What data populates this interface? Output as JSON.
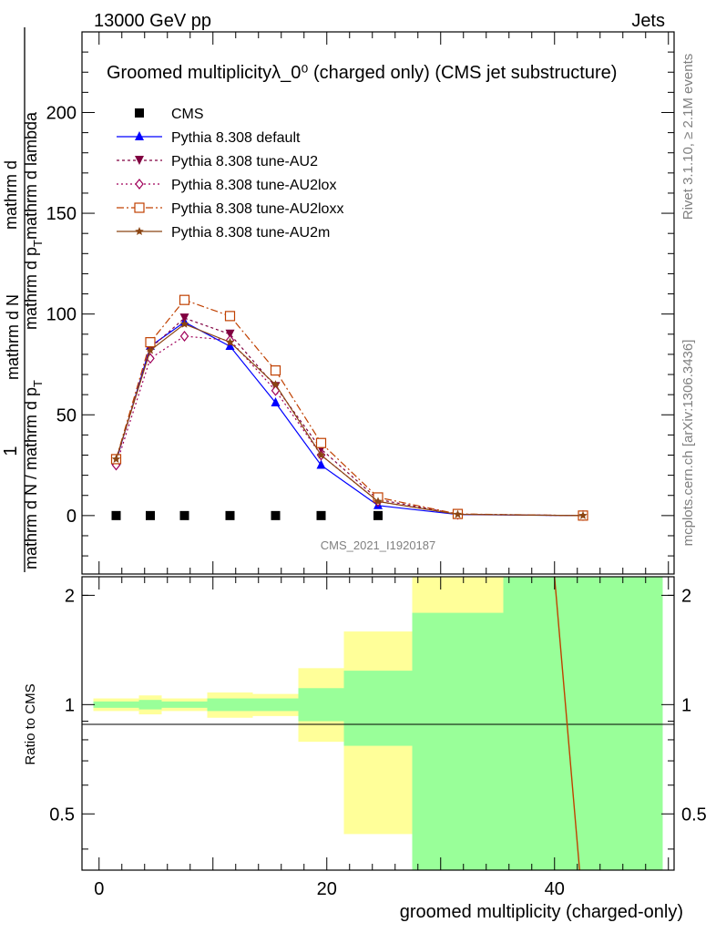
{
  "header": {
    "left": "13000 GeV pp",
    "right": "Jets"
  },
  "side": {
    "rivet": "Rivet 3.1.10, ≥ 2.1M events",
    "mcplots": "mcplots.cern.ch [arXiv:1306.3436]"
  },
  "colors": {
    "cms": "#000000",
    "default": "#0000ff",
    "au2": "#800040",
    "au2lox": "#a0005a",
    "au2loxx": "#c04000",
    "au2m": "#8b4513",
    "band_yellow": "#ffff99",
    "band_green": "#99ff99"
  },
  "chart_data": [
    {
      "type": "line",
      "title": "Groomed multiplicityλ_0⁰ (charged only) (CMS jet substructure)",
      "ylabel_parts": [
        "1",
        "mathrm d N / mathrm d p",
        "T",
        "mathrm d N",
        "mathrm d p",
        "T",
        "mathrm d lambda",
        "mathrm d"
      ],
      "ylabel": "1 / mathrm dN / mathrm d p_T · mathrm d²N / mathrm d p_T mathrm d lambda",
      "watermark": "CMS_2021_I1920187",
      "xlim": [
        -1.5,
        50.5
      ],
      "ylim": [
        -29,
        240
      ],
      "yticks": [
        0,
        50,
        100,
        150,
        200
      ],
      "legend_position": "top-left",
      "x": [
        1.5,
        4.5,
        7.5,
        11.5,
        15.5,
        19.5,
        24.5,
        31.5,
        42.5
      ],
      "series": [
        {
          "name": "CMS",
          "color_key": "cms",
          "marker": "square",
          "values": [
            0,
            0,
            0,
            0,
            0,
            0,
            0,
            0,
            0
          ]
        },
        {
          "name": "Pythia 8.308 default",
          "color_key": "default",
          "marker": "triangle-up",
          "dash": "",
          "values": [
            27,
            84,
            96,
            84,
            56,
            25,
            5,
            0.5,
            0
          ]
        },
        {
          "name": "Pythia 8.308 tune-AU2",
          "color_key": "au2",
          "marker": "triangle-down",
          "dash": "3,3",
          "values": [
            27,
            83,
            98,
            90,
            64,
            33,
            8,
            0.7,
            0
          ]
        },
        {
          "name": "Pythia 8.308 tune-AU2lox",
          "color_key": "au2lox",
          "marker": "diamond",
          "dash": "2,3",
          "values": [
            25,
            78,
            89,
            87,
            62,
            30,
            7,
            0.6,
            0
          ]
        },
        {
          "name": "Pythia 8.308 tune-AU2loxx",
          "color_key": "au2loxx",
          "marker": "square-open",
          "dash": "8,3,2,3",
          "values": [
            28,
            86,
            107,
            99,
            72,
            36,
            9,
            0.8,
            0
          ]
        },
        {
          "name": "Pythia 8.308 tune-AU2m",
          "color_key": "au2m",
          "marker": "star",
          "dash": "",
          "values": [
            28,
            82,
            95,
            86,
            65,
            30,
            7,
            0.6,
            0
          ]
        }
      ]
    },
    {
      "type": "line",
      "xlabel": "groomed multiplicity (charged-only)",
      "ylabel": "Ratio to CMS",
      "xlim": [
        -1.5,
        50.5
      ],
      "ylim": [
        0.35,
        2.25
      ],
      "xticks": [
        0,
        20,
        40
      ],
      "yticks": [
        0.5,
        1,
        2
      ],
      "bins": [
        {
          "lo": -0.5,
          "hi": 3.5,
          "y_lo": 0.96,
          "y_hi": 1.04,
          "g_lo": 0.98,
          "g_hi": 1.02
        },
        {
          "lo": 3.5,
          "hi": 5.5,
          "y_lo": 0.94,
          "y_hi": 1.06,
          "g_lo": 0.97,
          "g_hi": 1.03
        },
        {
          "lo": 5.5,
          "hi": 9.5,
          "y_lo": 0.96,
          "y_hi": 1.04,
          "g_lo": 0.98,
          "g_hi": 1.02
        },
        {
          "lo": 9.5,
          "hi": 13.5,
          "y_lo": 0.92,
          "y_hi": 1.08,
          "g_lo": 0.96,
          "g_hi": 1.04
        },
        {
          "lo": 13.5,
          "hi": 17.5,
          "y_lo": 0.93,
          "y_hi": 1.07,
          "g_lo": 0.96,
          "g_hi": 1.04
        },
        {
          "lo": 17.5,
          "hi": 21.5,
          "y_lo": 0.79,
          "y_hi": 1.26,
          "g_lo": 0.9,
          "g_hi": 1.11
        },
        {
          "lo": 21.5,
          "hi": 27.5,
          "y_lo": 0.44,
          "y_hi": 1.59,
          "g_lo": 0.77,
          "g_hi": 1.24
        },
        {
          "lo": 27.5,
          "hi": 35.5,
          "y_lo": 0.35,
          "y_hi": 2.25,
          "g_lo": 0.35,
          "g_hi": 1.79
        },
        {
          "lo": 35.5,
          "hi": 49.5,
          "y_lo": 0.35,
          "y_hi": 2.25,
          "g_lo": 0.35,
          "g_hi": 2.25
        }
      ],
      "ratio_line": {
        "x": [
          40.0,
          42.2
        ],
        "y": [
          2.25,
          0.35
        ]
      }
    }
  ]
}
